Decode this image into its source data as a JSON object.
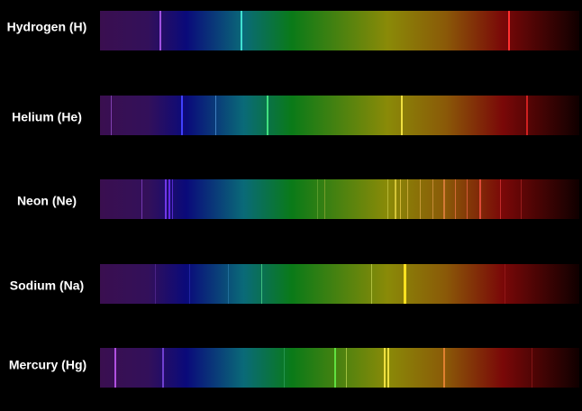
{
  "spectra": [
    {
      "label": "Hydrogen (H)"
    },
    {
      "label": "Helium (He)"
    },
    {
      "label": "Neon (Ne)"
    },
    {
      "label": "Sodium (Na)"
    },
    {
      "label": "Mercury (Hg)"
    }
  ]
}
